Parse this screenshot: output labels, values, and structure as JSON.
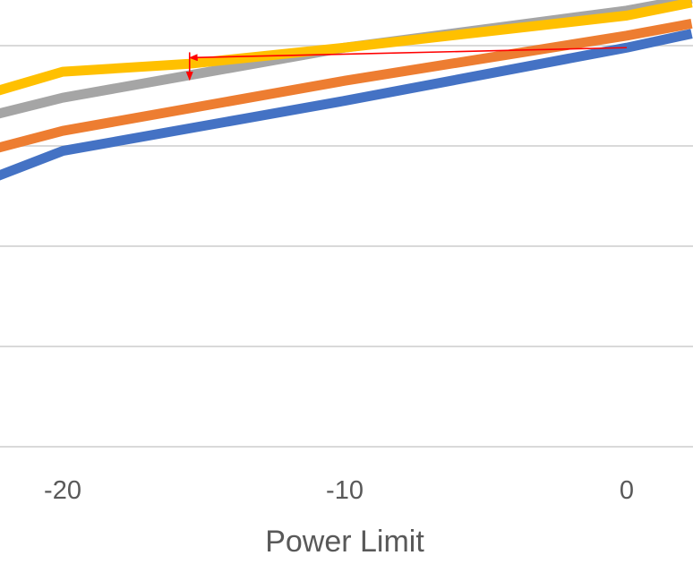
{
  "chart_data": {
    "type": "line",
    "title": "",
    "xlabel": "Power Limit",
    "ylabel": "",
    "xlim": [
      -22,
      2.3
    ],
    "ylim": [
      0,
      4.45
    ],
    "x_ticks": [
      -20,
      -10,
      0
    ],
    "y_gridlines": [
      0,
      1,
      2,
      3,
      4
    ],
    "grid": true,
    "legend": "none",
    "series": [
      {
        "name": "blue",
        "color": "#4472c4",
        "x": [
          -22.3,
          -20,
          -10,
          0,
          2.3
        ],
        "y": [
          2.7,
          2.95,
          3.45,
          3.98,
          4.12
        ]
      },
      {
        "name": "orange",
        "color": "#ed7d31",
        "x": [
          -22.3,
          -20,
          -10,
          0,
          2.3
        ],
        "y": [
          2.98,
          3.15,
          3.65,
          4.1,
          4.22
        ]
      },
      {
        "name": "gray",
        "color": "#a5a5a5",
        "x": [
          -22.3,
          -20,
          -10,
          0,
          2.3
        ],
        "y": [
          3.32,
          3.48,
          3.98,
          4.35,
          4.47
        ]
      },
      {
        "name": "yellow",
        "color": "#ffc000",
        "x": [
          -22.3,
          -20,
          -15.5,
          -10,
          0,
          2.3
        ],
        "y": [
          3.55,
          3.74,
          3.82,
          3.98,
          4.3,
          4.43
        ]
      }
    ],
    "annotation": {
      "type": "arrow",
      "color": "#ff0000",
      "from": [
        0,
        3.98
      ],
      "to": [
        -15.5,
        3.88
      ],
      "drop_to": [
        -15.5,
        3.66
      ]
    }
  }
}
